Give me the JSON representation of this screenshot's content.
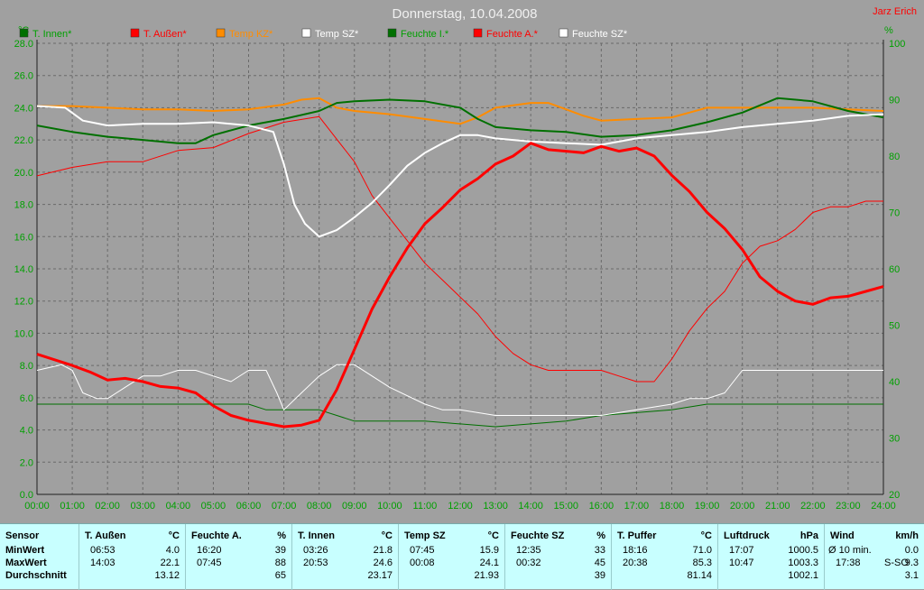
{
  "title": "Donnerstag, 10.04.2008",
  "author": "Jarz Erich",
  "colors": {
    "bg": "#a0a0a0",
    "red": "#ff0000",
    "green": "#007000",
    "orange": "#ff8c00",
    "white": "#ffffff",
    "panel": "#c8ffff"
  },
  "chart_data": {
    "type": "line",
    "title": "Donnerstag, 10.04.2008",
    "left_axis": {
      "unit": "°C",
      "range": [
        0,
        28
      ],
      "ticks": [
        "0.0",
        "2.0",
        "4.0",
        "6.0",
        "8.0",
        "10.0",
        "12.0",
        "14.0",
        "16.0",
        "18.0",
        "20.0",
        "22.0",
        "24.0",
        "26.0",
        "28.0"
      ]
    },
    "right_axis": {
      "unit": "%",
      "range": [
        20,
        100
      ],
      "ticks": [
        "20",
        "30",
        "40",
        "50",
        "60",
        "70",
        "80",
        "90",
        "100"
      ]
    },
    "x_ticks": [
      "00:00",
      "01:00",
      "02:00",
      "03:00",
      "04:00",
      "05:00",
      "06:00",
      "07:00",
      "08:00",
      "09:00",
      "10:00",
      "11:00",
      "12:00",
      "13:00",
      "14:00",
      "15:00",
      "16:00",
      "17:00",
      "18:00",
      "19:00",
      "20:00",
      "21:00",
      "22:00",
      "23:00",
      "24:00"
    ],
    "x_range": [
      0,
      24
    ],
    "grid": true,
    "legend": [
      {
        "label": "T. Innen*",
        "color": "#007000",
        "text_color": "#00a000"
      },
      {
        "label": "T. Außen*",
        "color": "#ff0000",
        "text_color": "#ff0000"
      },
      {
        "label": "Temp KZ*",
        "color": "#ff8c00",
        "text_color": "#ff8c00"
      },
      {
        "label": "Temp SZ*",
        "color": "#ffffff",
        "text_color": "#ffffff"
      },
      {
        "label": "Feuchte I.*",
        "color": "#007000",
        "text_color": "#00a000"
      },
      {
        "label": "Feuchte A.*",
        "color": "#ff0000",
        "text_color": "#ff0000"
      },
      {
        "label": "Feuchte SZ*",
        "color": "#ffffff",
        "text_color": "#ffffff"
      }
    ],
    "series": [
      {
        "name": "T. Innen*",
        "axis": "left",
        "color": "#007000",
        "width": 2,
        "x": [
          0,
          1,
          2,
          3,
          4,
          4.5,
          5,
          6,
          7,
          8,
          8.5,
          9,
          10,
          11,
          12,
          12.5,
          13,
          14,
          15,
          16,
          17,
          18,
          19,
          20,
          21,
          22,
          23,
          24
        ],
        "y": [
          22.9,
          22.5,
          22.2,
          22.0,
          21.8,
          21.8,
          22.3,
          22.9,
          23.3,
          23.8,
          24.3,
          24.4,
          24.5,
          24.4,
          24.0,
          23.3,
          22.8,
          22.6,
          22.5,
          22.2,
          22.3,
          22.6,
          23.1,
          23.7,
          24.6,
          24.4,
          23.8,
          23.4
        ]
      },
      {
        "name": "T. Außen*",
        "axis": "left",
        "color": "#ff0000",
        "width": 3,
        "x": [
          0,
          1,
          1.5,
          2,
          2.5,
          3,
          3.5,
          4,
          4.5,
          5,
          5.5,
          6,
          6.5,
          7,
          7.5,
          8,
          8.5,
          9,
          9.5,
          10,
          10.5,
          11,
          11.5,
          12,
          12.5,
          13,
          13.5,
          14,
          14.5,
          15,
          15.5,
          16,
          16.5,
          17,
          17.5,
          18,
          18.5,
          19,
          19.5,
          20,
          20.5,
          21,
          21.5,
          22,
          22.5,
          23,
          23.5,
          24
        ],
        "y": [
          8.7,
          8.0,
          7.6,
          7.1,
          7.2,
          7.0,
          6.7,
          6.6,
          6.3,
          5.5,
          4.9,
          4.6,
          4.4,
          4.2,
          4.3,
          4.6,
          6.5,
          9.0,
          11.5,
          13.5,
          15.3,
          16.8,
          17.8,
          18.9,
          19.6,
          20.5,
          21.0,
          21.8,
          21.4,
          21.3,
          21.2,
          21.6,
          21.3,
          21.5,
          21.0,
          19.8,
          18.8,
          17.5,
          16.5,
          15.2,
          13.5,
          12.6,
          12.0,
          11.8,
          12.2,
          12.3,
          12.6,
          12.9
        ]
      },
      {
        "name": "Temp KZ*",
        "axis": "left",
        "color": "#ff8c00",
        "width": 2,
        "x": [
          0,
          1,
          2,
          3,
          4,
          5,
          6,
          7,
          7.5,
          8,
          8.5,
          9,
          10,
          11,
          12,
          12.5,
          13,
          14,
          14.5,
          15,
          15.5,
          16,
          17,
          18,
          18.5,
          19,
          20,
          21,
          22,
          23,
          24
        ],
        "y": [
          24.1,
          24.1,
          24.0,
          23.9,
          23.9,
          23.8,
          23.9,
          24.2,
          24.5,
          24.6,
          24.0,
          23.8,
          23.6,
          23.3,
          23.0,
          23.4,
          24.0,
          24.3,
          24.3,
          23.9,
          23.5,
          23.2,
          23.3,
          23.4,
          23.7,
          24.0,
          24.0,
          24.0,
          24.0,
          23.9,
          23.8
        ]
      },
      {
        "name": "Temp SZ*",
        "axis": "left",
        "color": "#ffffff",
        "width": 2,
        "x": [
          0,
          0.8,
          1.3,
          2,
          3,
          4,
          5,
          6,
          6.7,
          7,
          7.3,
          7.6,
          8,
          8.5,
          9,
          9.5,
          10,
          10.5,
          11,
          11.5,
          12,
          12.5,
          13,
          14,
          15,
          16,
          17,
          18,
          19,
          20,
          21,
          22,
          23,
          24
        ],
        "y": [
          24.1,
          24.0,
          23.2,
          22.9,
          23.0,
          23.0,
          23.1,
          22.9,
          22.5,
          20.5,
          18.0,
          16.8,
          16.0,
          16.4,
          17.2,
          18.1,
          19.2,
          20.4,
          21.2,
          21.8,
          22.3,
          22.3,
          22.1,
          21.9,
          21.8,
          21.7,
          22.1,
          22.3,
          22.5,
          22.8,
          23.0,
          23.2,
          23.5,
          23.6
        ]
      },
      {
        "name": "Feuchte I.*",
        "axis": "right",
        "color": "#007000",
        "width": 1,
        "x": [
          0,
          1,
          2,
          3,
          4,
          5,
          6,
          6.5,
          7,
          8,
          8.5,
          9,
          10,
          11,
          12,
          13,
          14,
          15,
          16,
          17,
          18,
          18.5,
          19,
          20,
          21,
          22,
          23,
          24
        ],
        "y": [
          36,
          36,
          36,
          36,
          36,
          36,
          36,
          35,
          35,
          35,
          34,
          33,
          33,
          33,
          32.5,
          32,
          32.5,
          33,
          34,
          34.5,
          35,
          35.5,
          36,
          36,
          36,
          36,
          36,
          36
        ]
      },
      {
        "name": "Feuchte A.*",
        "axis": "right",
        "color": "#ff0000",
        "width": 1,
        "x": [
          0,
          1,
          2,
          3,
          4,
          5,
          6,
          7,
          8,
          8.5,
          9,
          9.5,
          10,
          10.5,
          11,
          11.5,
          12,
          12.5,
          13,
          13.5,
          14,
          14.5,
          15,
          15.5,
          16,
          16.5,
          17,
          17.5,
          18,
          18.5,
          19,
          19.5,
          20,
          20.5,
          21,
          21.5,
          22,
          22.5,
          23,
          23.5,
          24
        ],
        "y": [
          76.5,
          78,
          79,
          79,
          81,
          81.5,
          84,
          86,
          87,
          83,
          79,
          73,
          69,
          65,
          61,
          58,
          55,
          52,
          48,
          45,
          43,
          42,
          42,
          42,
          42,
          41,
          40,
          40,
          44,
          49,
          53,
          56,
          61,
          64,
          65,
          67,
          70,
          71,
          71,
          72,
          72
        ]
      },
      {
        "name": "Feuchte SZ*",
        "axis": "right",
        "color": "#ffffff",
        "width": 1,
        "x": [
          0,
          0.7,
          1,
          1.3,
          1.7,
          2,
          2.5,
          3,
          3.5,
          4,
          4.5,
          5,
          5.5,
          6,
          6.5,
          6.8,
          7,
          7.5,
          8,
          8.5,
          9,
          9.5,
          10,
          11,
          11.5,
          12,
          13,
          14,
          15,
          16,
          17,
          18,
          18.5,
          19,
          19.5,
          20,
          21,
          22,
          23,
          24
        ],
        "y": [
          42,
          43,
          42,
          38,
          37,
          37,
          39,
          41,
          41,
          42,
          42,
          41,
          40,
          42,
          42,
          38,
          35,
          38,
          41,
          43,
          43,
          41,
          39,
          36,
          35,
          35,
          34,
          34,
          34,
          34,
          35,
          36,
          37,
          37,
          38,
          42,
          42,
          42,
          42,
          42
        ]
      }
    ]
  },
  "summary": {
    "headers": [
      "Sensor",
      "T. Außen",
      "°C",
      "Feuchte A.",
      "%",
      "T. Innen",
      "°C",
      "Temp SZ",
      "°C",
      "Feuchte SZ",
      "%",
      "T. Puffer",
      "°C",
      "Luftdruck",
      "hPa",
      "Wind",
      "km/h"
    ],
    "row_labels": [
      "MinWert",
      "MaxWert",
      "Durchschnitt"
    ],
    "t_aussen": {
      "min_time": "06:53",
      "min": "4.0",
      "max_time": "14:03",
      "max": "22.1",
      "avg": "13.12"
    },
    "feuchte_a": {
      "min_time": "16:20",
      "min": "39",
      "max_time": "07:45",
      "max": "88",
      "avg": "65"
    },
    "t_innen": {
      "min_time": "03:26",
      "min": "21.8",
      "max_time": "20:53",
      "max": "24.6",
      "avg": "23.17"
    },
    "temp_sz": {
      "min_time": "07:45",
      "min": "15.9",
      "max_time": "00:08",
      "max": "24.1",
      "avg": "21.93"
    },
    "feuchte_sz": {
      "min_time": "12:35",
      "min": "33",
      "max_time": "00:32",
      "max": "45",
      "avg": "39"
    },
    "t_puffer": {
      "min_time": "18:16",
      "min": "71.0",
      "max_time": "20:38",
      "max": "85.3",
      "avg": "81.14"
    },
    "luftdruck": {
      "min_time": "17:07",
      "min": "1000.5",
      "max_time": "10:47",
      "max": "1003.3",
      "avg": "1002.1"
    },
    "wind": {
      "min_label": "Ø 10 min.",
      "min": "0.0",
      "max_time": "17:38",
      "max_dir": "S-SO",
      "max": "9.3",
      "avg": "3.1"
    }
  }
}
